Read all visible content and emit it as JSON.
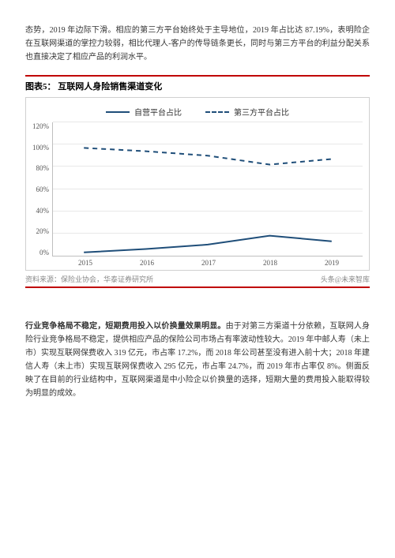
{
  "intro_paragraph": "态势，2019 年边际下滑。相应的第三方平台始终处于主导地位，2019 年占比达 87.19%，表明险企在互联网渠道的掌控力较弱，相比代理人-客户的传导链条更长，同时与第三方平台的利益分配关系也直接决定了相应产品的利润水平。",
  "chart": {
    "type": "line",
    "title": "图表5：  互联网人身险销售渠道变化",
    "legend": {
      "series1": "自营平台占比",
      "series2": "第三方平台占比"
    },
    "categories": [
      "2015",
      "2016",
      "2017",
      "2018",
      "2019"
    ],
    "series1_values": [
      3,
      6,
      10,
      18,
      13
    ],
    "series2_values": [
      97,
      94,
      90,
      82,
      87
    ],
    "series1_style": {
      "color": "#1f4e79",
      "dash": "none",
      "width": 2
    },
    "series2_style": {
      "color": "#1f4e79",
      "dash": "6,5",
      "width": 2
    },
    "y_axis": {
      "min": 0,
      "max": 120,
      "step": 20,
      "labels": [
        "120%",
        "100%",
        "80%",
        "60%",
        "40%",
        "20%",
        "0%"
      ]
    },
    "grid_color": "#e8e8e8",
    "border_color": "#bfbfbf",
    "background_color": "#ffffff",
    "font_size_pt": 9
  },
  "source_line": "资料来源：保险业协会，华泰证券研究所",
  "watermark": "头条@未来智库",
  "para2_bold": "行业竞争格局不稳定，短期费用投入以价换量效果明显。",
  "para2_rest": "由于对第三方渠道十分依赖，互联网人身险行业竞争格局不稳定，提供相应产品的保险公司市场占有率波动性较大。2019 年中邮人寿（未上市）实现互联网保费收入 319 亿元，市占率 17.2%，而 2018 年公司甚至没有进入前十大；2018 年建信人寿（未上市）实现互联网保费收入 295 亿元，市占率 24.7%，而 2019 年市占率仅 8%。侧面反映了在目前的行业结构中，互联网渠道是中小险企以价换量的选择，短期大量的费用投入能取得较为明显的成效。",
  "colors": {
    "accent_red": "#c00000",
    "text": "#333333",
    "muted": "#888888"
  }
}
